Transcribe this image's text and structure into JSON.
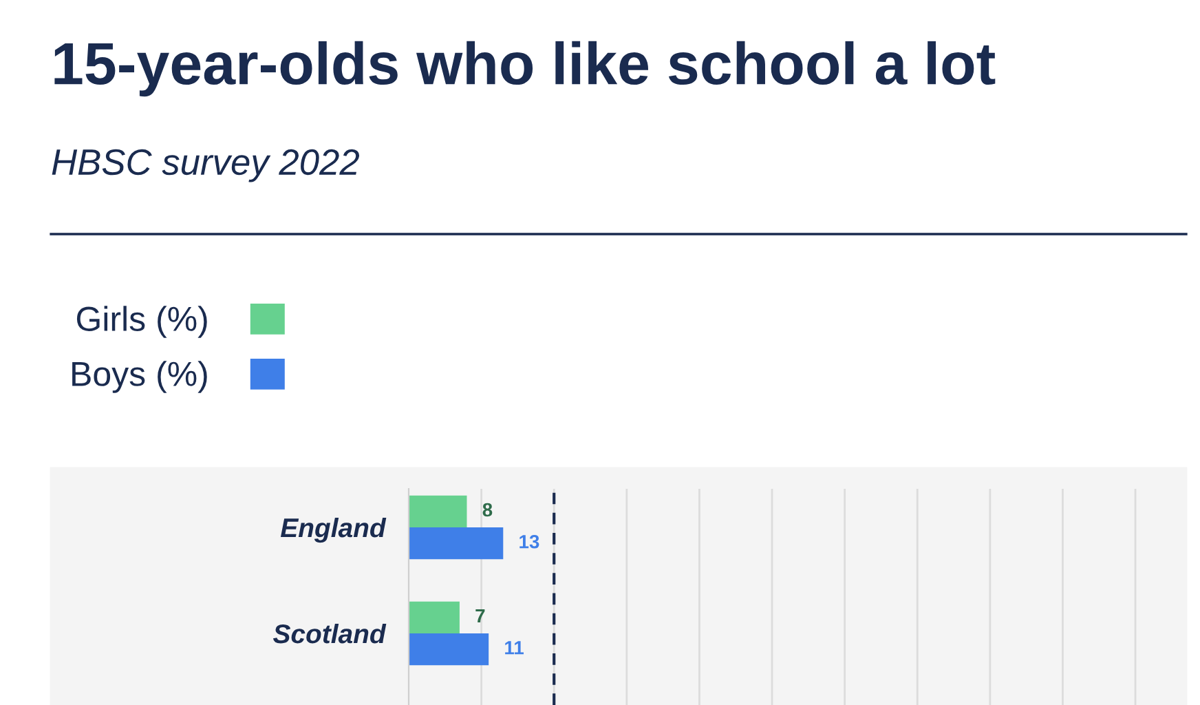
{
  "chart_data": {
    "type": "bar",
    "orientation": "horizontal",
    "title": "15-year-olds who like school a lot",
    "subtitle": "HBSC survey 2022",
    "categories": [
      "England",
      "Scotland"
    ],
    "series": [
      {
        "name": "Girls (%)",
        "color": "#66d18f",
        "values": [
          8,
          7
        ]
      },
      {
        "name": "Boys (%)",
        "color": "#3f7fe8",
        "values": [
          13,
          11
        ]
      }
    ],
    "xlim": [
      0,
      107
    ],
    "xticks": [
      {
        "value": 10,
        "label": null
      },
      {
        "value": 20,
        "label": null
      },
      {
        "value": 30,
        "label": null
      },
      {
        "value": 40,
        "label": null
      },
      {
        "value": 50,
        "label": null
      },
      {
        "value": 60,
        "label": null
      },
      {
        "value": 70,
        "label": null
      },
      {
        "value": 80,
        "label": null
      },
      {
        "value": 90,
        "label": null
      },
      {
        "value": 100,
        "label": null
      }
    ],
    "ref_lines": [
      {
        "axis": "x",
        "value": 20,
        "label": null,
        "color": "#1a2b4f",
        "line_style": "dashed"
      }
    ],
    "grid": "x",
    "legend": "top left",
    "data_labels": true,
    "tick_labels": "y"
  }
}
